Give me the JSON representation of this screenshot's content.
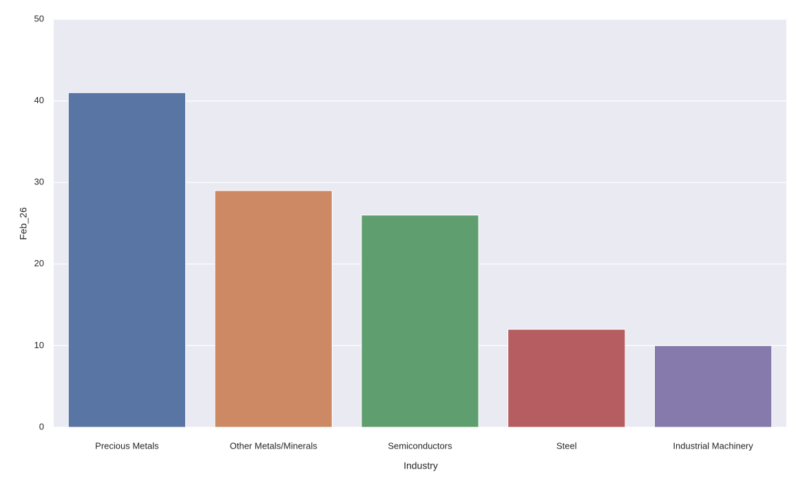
{
  "chart_data": {
    "type": "bar",
    "x_label": "Industry",
    "y_label": "Feb_26",
    "categories": [
      "Precious Metals",
      "Other Metals/Minerals",
      "Semiconductors",
      "Steel",
      "Industrial Machinery"
    ],
    "values": [
      41,
      29,
      26,
      12,
      10
    ],
    "colors": [
      "#5975a4",
      "#cc8963",
      "#5f9e6e",
      "#b55d60",
      "#857aab"
    ],
    "ylim": [
      0,
      50
    ],
    "yticks": [
      0,
      10,
      20,
      30,
      40,
      50
    ],
    "grid": true
  }
}
